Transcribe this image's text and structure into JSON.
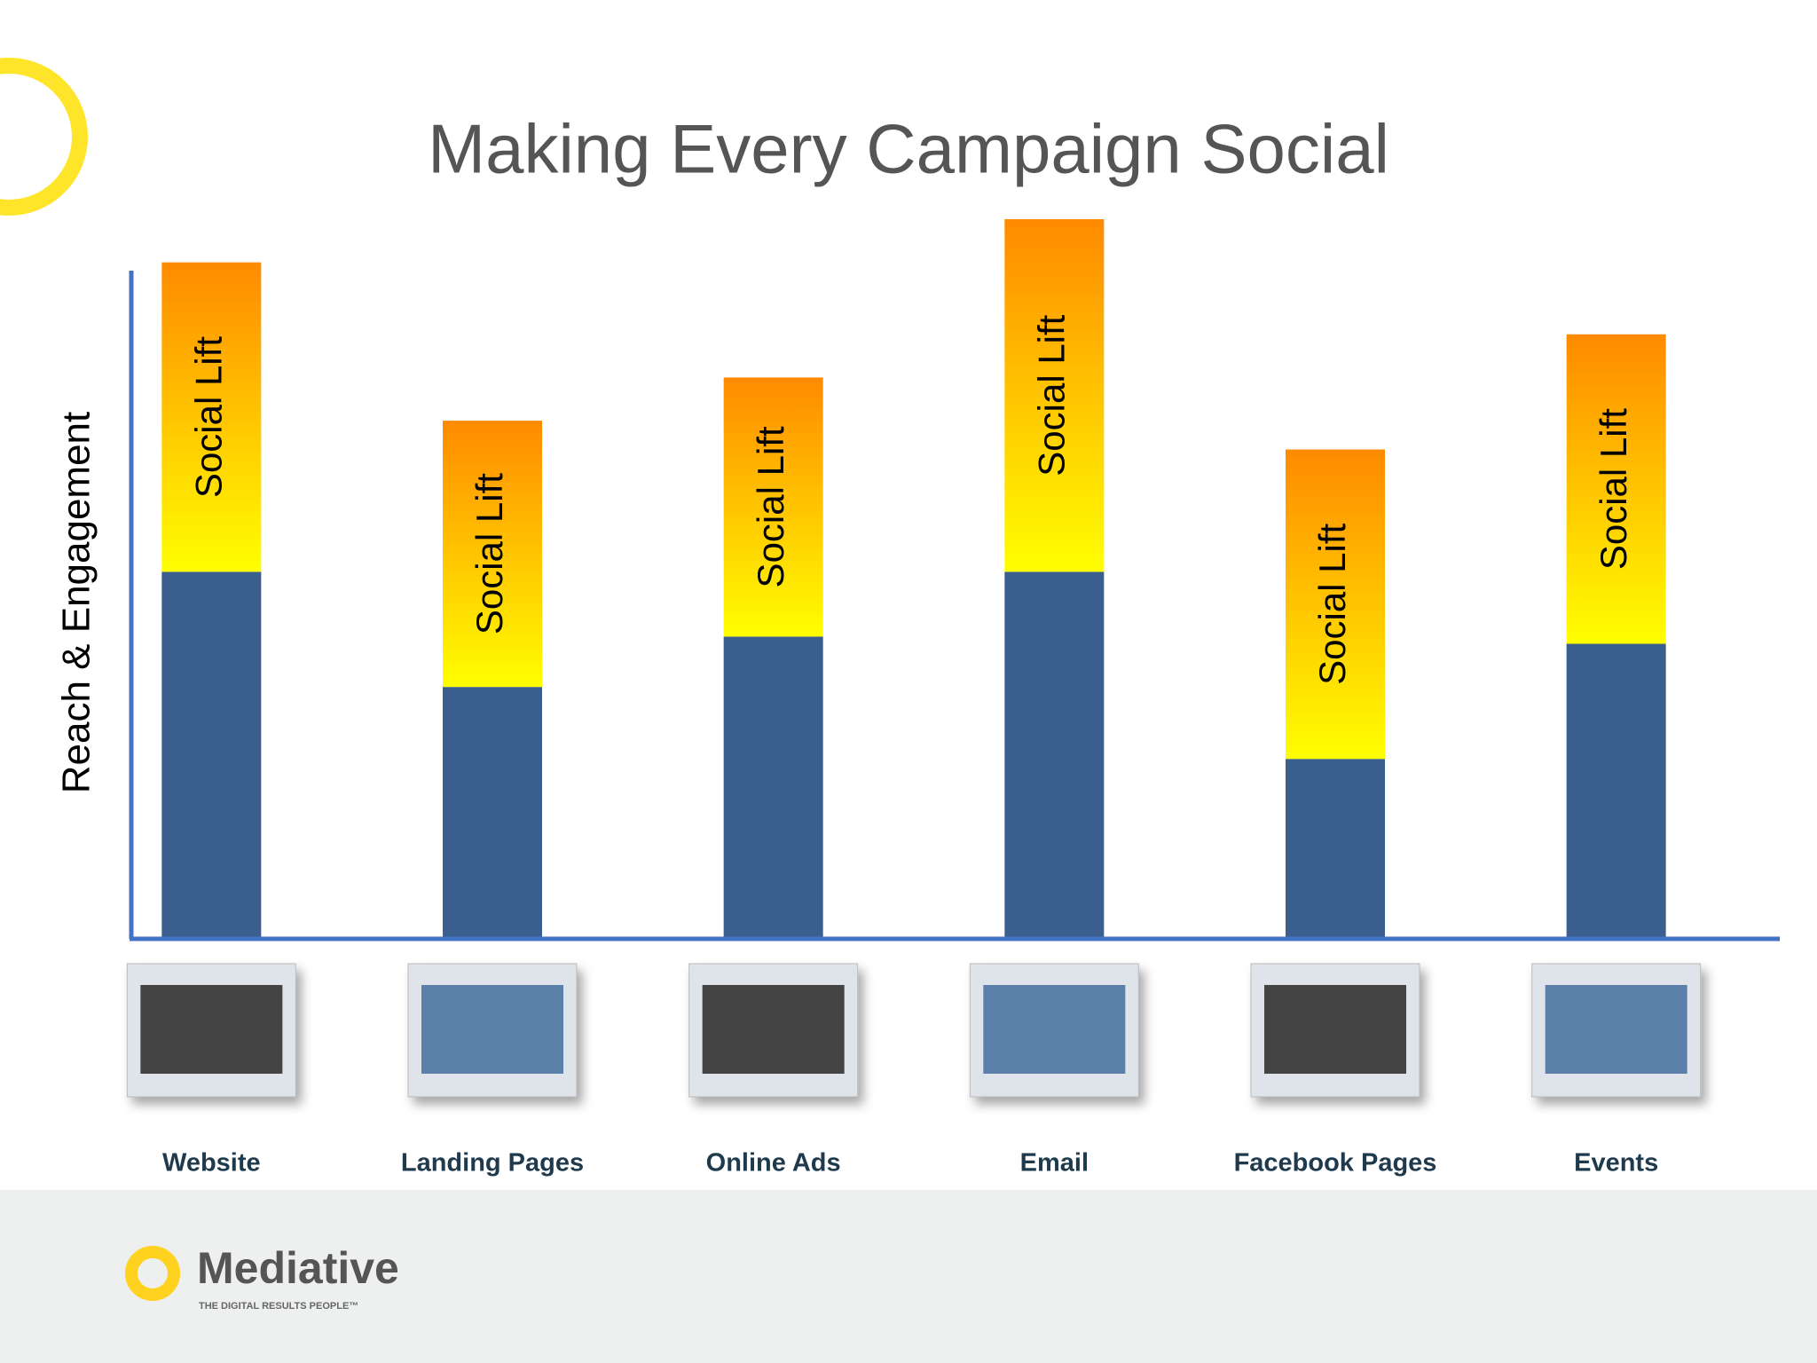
{
  "chart_data": {
    "type": "stacked-bar",
    "title": "Making Every Campaign Social",
    "y_label": "Reach & Engagement",
    "categories": [
      "Website",
      "Landing Pages",
      "Online Ads",
      "Email",
      "Facebook Pages",
      "Events"
    ],
    "series": [
      {
        "color": "#3a5f8f",
        "values": [
          51,
          35,
          42,
          51,
          25,
          41
        ]
      },
      {
        "name": "Social Lift",
        "color": [
          "#ff8a00",
          "#ffff00"
        ],
        "values": [
          43,
          37,
          36,
          49,
          43,
          43
        ]
      }
    ],
    "ylim": [
      0,
      100
    ]
  },
  "footer": {
    "logo": "Mediative",
    "tagline": "THE DIGITAL RESULTS PEOPLE™"
  }
}
